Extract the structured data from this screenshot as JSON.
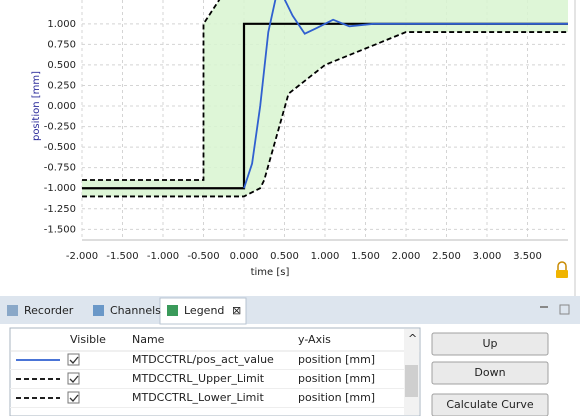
{
  "chart_data": {
    "type": "line",
    "xlabel": "time [s]",
    "ylabel": "position [mm]",
    "xlim": [
      -2,
      4
    ],
    "ylim": [
      -1.63,
      1.29
    ],
    "xticks": [
      {
        "value": -2,
        "label": "-2.000"
      },
      {
        "value": -1.5,
        "label": "-1.500"
      },
      {
        "value": -1,
        "label": "-1.000"
      },
      {
        "value": -0.5,
        "label": "-0.500"
      },
      {
        "value": 0,
        "label": "0.000"
      },
      {
        "value": 0.5,
        "label": "0.500"
      },
      {
        "value": 1,
        "label": "1.000"
      },
      {
        "value": 1.5,
        "label": "1.500"
      },
      {
        "value": 2,
        "label": "2.000"
      },
      {
        "value": 2.5,
        "label": "2.500"
      },
      {
        "value": 3,
        "label": "3.000"
      },
      {
        "value": 3.5,
        "label": "3.500"
      }
    ],
    "yticks": [
      {
        "value": 1,
        "label": "1.000"
      },
      {
        "value": 0.75,
        "label": "0.750"
      },
      {
        "value": 0.5,
        "label": "0.500"
      },
      {
        "value": 0.25,
        "label": "0.250"
      },
      {
        "value": 0,
        "label": "0.000"
      },
      {
        "value": -0.25,
        "label": "-0.250"
      },
      {
        "value": -0.5,
        "label": "-0.500"
      },
      {
        "value": -0.75,
        "label": "-0.750"
      },
      {
        "value": -1,
        "label": "-1.000"
      },
      {
        "value": -1.25,
        "label": "-1.250"
      },
      {
        "value": -1.5,
        "label": "-1.500"
      }
    ],
    "grid": true,
    "series": [
      {
        "name": "MTDCCTRL/pos_act_value",
        "color": "#3060d0",
        "style": "solid",
        "x": [
          0,
          0.1,
          0.2,
          0.3,
          0.4,
          0.5,
          0.6,
          0.75,
          0.9,
          1.1,
          1.3,
          1.6,
          2.0,
          4.0
        ],
        "y": [
          -1,
          -0.7,
          0.0,
          0.9,
          1.35,
          1.3,
          1.1,
          0.88,
          0.95,
          1.05,
          0.97,
          1.0,
          1.0,
          1.0
        ]
      },
      {
        "name": "MTDCCTRL_Upper_Limit",
        "color": "#000000",
        "style": "dashed",
        "x": [
          -2,
          -0.5,
          -0.5,
          -0.3
        ],
        "y": [
          -0.9,
          -0.9,
          1.0,
          1.3
        ]
      },
      {
        "name": "MTDCCTRL_Lower_Limit",
        "color": "#000000",
        "style": "dashed",
        "x": [
          -2,
          0,
          0.2,
          0.25,
          0.55,
          1.0,
          1.5,
          2.0,
          4.0
        ],
        "y": [
          -1.1,
          -1.1,
          -1.0,
          -0.9,
          0.15,
          0.5,
          0.7,
          0.9,
          0.9
        ]
      },
      {
        "color": "#000000",
        "style": "solid",
        "x": [
          -2,
          0,
          0,
          4
        ],
        "y": [
          -1,
          -1,
          1,
          1
        ]
      }
    ]
  },
  "tabs": [
    "Recorder",
    "Channels",
    "Legend"
  ],
  "legend_table": {
    "columns": [
      "Visible",
      "Name",
      "y-Axis"
    ],
    "axis": [
      "position [mm]",
      "position [mm]",
      "position [mm]"
    ]
  },
  "buttons": [
    "Up",
    "Down",
    "Calculate Curve"
  ]
}
